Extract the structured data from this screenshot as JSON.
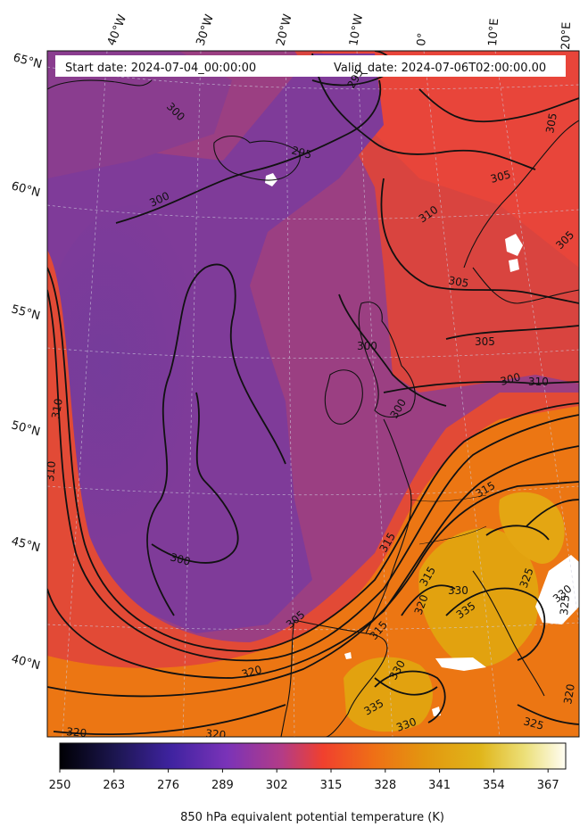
{
  "header": {
    "start_label": "Start date: 2024-07-04_00:00:00",
    "valid_label": "Valid_date: 2024-07-06T02:00:00.00"
  },
  "longitude_labels": [
    "40°W",
    "30°W",
    "20°W",
    "10°W",
    "0°",
    "10°E",
    "20°E"
  ],
  "latitude_labels": [
    "65°N",
    "60°N",
    "55°N",
    "50°N",
    "45°N",
    "40°N"
  ],
  "contour_labels": [
    "295",
    "295",
    "300",
    "300",
    "300",
    "300",
    "300",
    "300",
    "305",
    "305",
    "305",
    "305",
    "305",
    "305",
    "310",
    "310",
    "310",
    "310",
    "315",
    "315",
    "315",
    "315",
    "320",
    "320",
    "320",
    "320",
    "320",
    "325",
    "325",
    "325",
    "330",
    "330",
    "330",
    "330",
    "335",
    "335"
  ],
  "colorbar": {
    "label": "850 hPa equivalent potential temperature (K)",
    "ticks": [
      "250",
      "263",
      "276",
      "289",
      "302",
      "315",
      "328",
      "341",
      "354",
      "367"
    ],
    "range": [
      250,
      372
    ],
    "colormap": [
      "#000004",
      "#2a1b5c",
      "#5a2bb0",
      "#7d3c9e",
      "#b24472",
      "#f2402f",
      "#ef7a14",
      "#e29d10",
      "#e5c420",
      "#fffbe8"
    ]
  },
  "colors": {
    "cold": "#6a3f9e",
    "mild": "#b4416a",
    "warm": "#ee4a33",
    "hot": "#ec7712",
    "very_hot": "#e0a510",
    "contour": "#111111"
  }
}
